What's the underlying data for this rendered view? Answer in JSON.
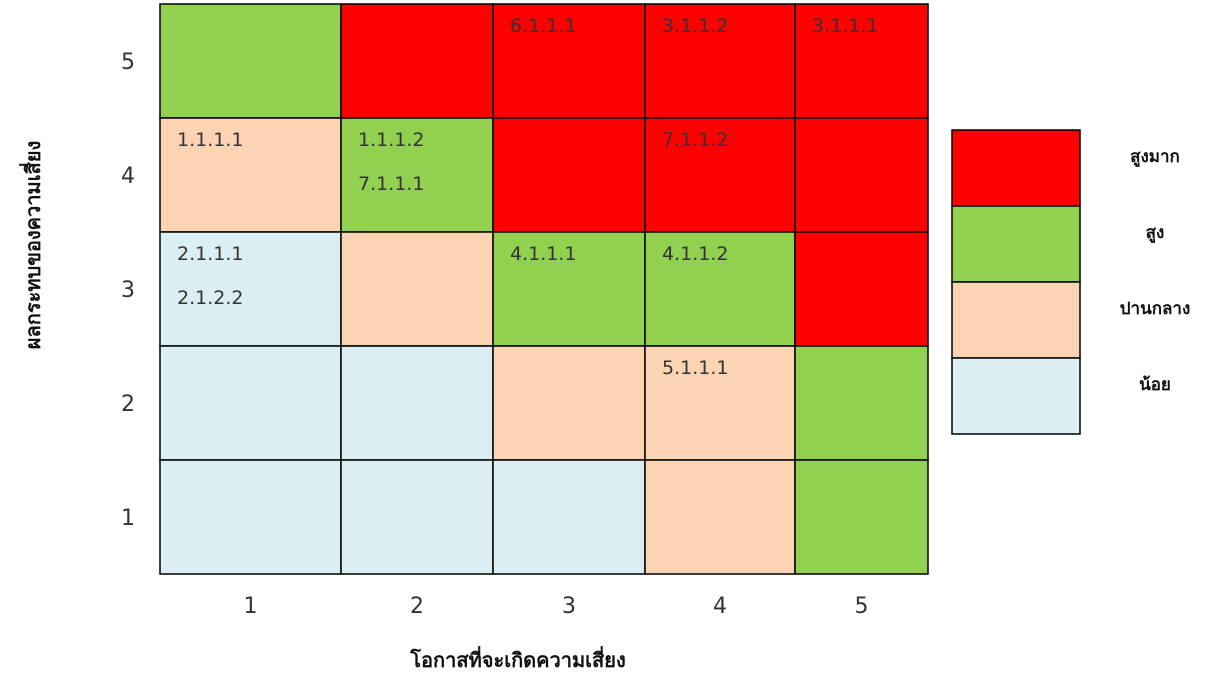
{
  "chart_data": {
    "type": "heatmap",
    "xlabel": "โอกาสที่จะเกิดความเสี่ยง",
    "ylabel": "ผลกระทบของความเสี่ยง",
    "x_ticks": [
      "1",
      "2",
      "3",
      "4",
      "5"
    ],
    "y_ticks": [
      "1",
      "2",
      "3",
      "4",
      "5"
    ],
    "levels": [
      {
        "key": "very_high",
        "label": "สูงมาก",
        "color": "#ff0000"
      },
      {
        "key": "high",
        "label": "สูง",
        "color": "#92d050"
      },
      {
        "key": "medium",
        "label": "ปานกลาง",
        "color": "#fbd4b4"
      },
      {
        "key": "low",
        "label": "น้อย",
        "color": "#daeef3"
      }
    ],
    "cells": [
      {
        "impact": 5,
        "likelihood": 1,
        "level": "high",
        "items": []
      },
      {
        "impact": 5,
        "likelihood": 2,
        "level": "very_high",
        "items": []
      },
      {
        "impact": 5,
        "likelihood": 3,
        "level": "very_high",
        "items": [
          "6.1.1.1"
        ]
      },
      {
        "impact": 5,
        "likelihood": 4,
        "level": "very_high",
        "items": [
          "3.1.1.2"
        ]
      },
      {
        "impact": 5,
        "likelihood": 5,
        "level": "very_high",
        "items": [
          "3.1.1.1"
        ]
      },
      {
        "impact": 4,
        "likelihood": 1,
        "level": "medium",
        "items": [
          "1.1.1.1"
        ]
      },
      {
        "impact": 4,
        "likelihood": 2,
        "level": "high",
        "items": [
          "1.1.1.2",
          "7.1.1.1"
        ]
      },
      {
        "impact": 4,
        "likelihood": 3,
        "level": "very_high",
        "items": []
      },
      {
        "impact": 4,
        "likelihood": 4,
        "level": "very_high",
        "items": [
          "7.1.1.2"
        ]
      },
      {
        "impact": 4,
        "likelihood": 5,
        "level": "very_high",
        "items": []
      },
      {
        "impact": 3,
        "likelihood": 1,
        "level": "low",
        "items": [
          "2.1.1.1",
          "2.1.2.2"
        ]
      },
      {
        "impact": 3,
        "likelihood": 2,
        "level": "medium",
        "items": []
      },
      {
        "impact": 3,
        "likelihood": 3,
        "level": "high",
        "items": [
          "4.1.1.1"
        ]
      },
      {
        "impact": 3,
        "likelihood": 4,
        "level": "high",
        "items": [
          "4.1.1.2"
        ]
      },
      {
        "impact": 3,
        "likelihood": 5,
        "level": "very_high",
        "items": []
      },
      {
        "impact": 2,
        "likelihood": 1,
        "level": "low",
        "items": []
      },
      {
        "impact": 2,
        "likelihood": 2,
        "level": "low",
        "items": []
      },
      {
        "impact": 2,
        "likelihood": 3,
        "level": "medium",
        "items": []
      },
      {
        "impact": 2,
        "likelihood": 4,
        "level": "medium",
        "items": [
          "5.1.1.1"
        ]
      },
      {
        "impact": 2,
        "likelihood": 5,
        "level": "high",
        "items": []
      },
      {
        "impact": 1,
        "likelihood": 1,
        "level": "low",
        "items": []
      },
      {
        "impact": 1,
        "likelihood": 2,
        "level": "low",
        "items": []
      },
      {
        "impact": 1,
        "likelihood": 3,
        "level": "low",
        "items": []
      },
      {
        "impact": 1,
        "likelihood": 4,
        "level": "medium",
        "items": []
      },
      {
        "impact": 1,
        "likelihood": 5,
        "level": "high",
        "items": []
      }
    ]
  }
}
